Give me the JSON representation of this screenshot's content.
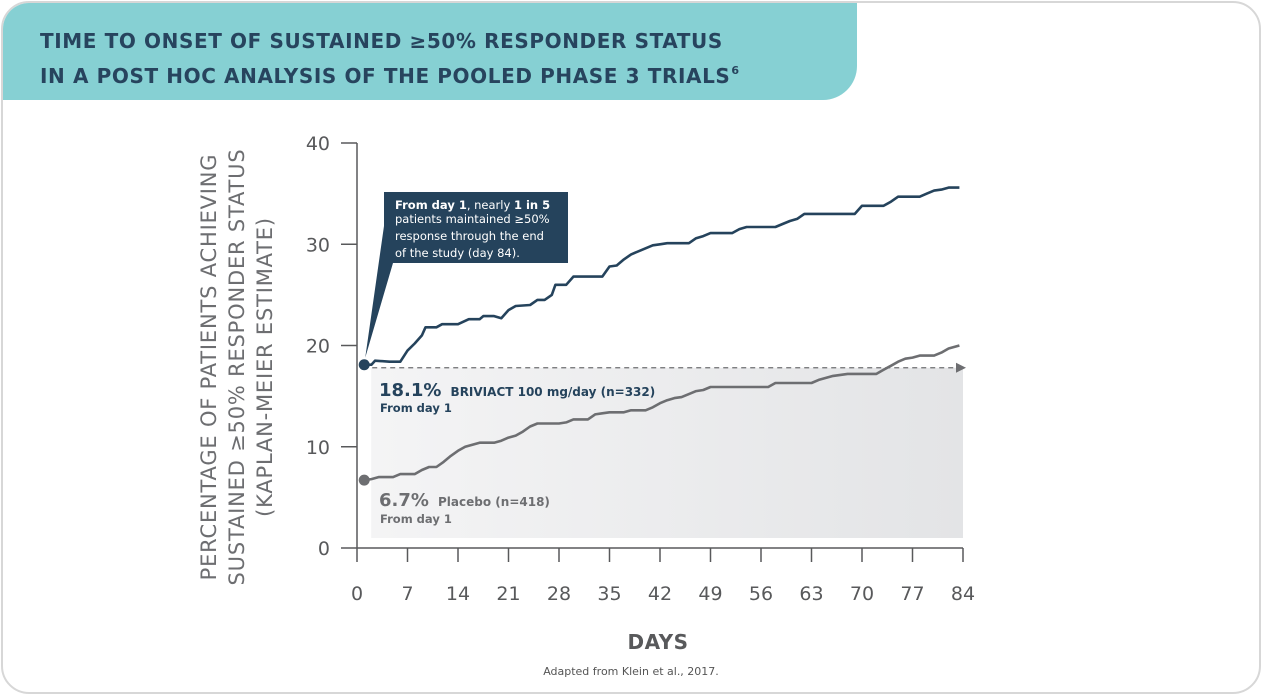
{
  "header": {
    "title_line1": "TIME TO ONSET OF SUSTAINED ≥50% RESPONDER STATUS",
    "title_line2": "IN A POST HOC ANALYSIS OF THE POOLED PHASE 3 TRIALS",
    "title_superscript": "6"
  },
  "chart_data": {
    "type": "line",
    "xlabel": "DAYS",
    "ylabel_lines": [
      "PERCENTAGE OF PATIENTS ACHIEVING",
      "SUSTAINED ≥50% RESPONDER STATUS",
      "(KAPLAN-MEIER ESTIMATE)"
    ],
    "xlim": [
      0,
      84
    ],
    "ylim": [
      0,
      40
    ],
    "x_ticks": [
      0,
      7,
      14,
      21,
      28,
      35,
      42,
      49,
      56,
      63,
      70,
      77,
      84
    ],
    "y_ticks": [
      0,
      10,
      20,
      30,
      40
    ],
    "grid": false,
    "series": [
      {
        "name": "BRIVIACT 100 mg/day (n=332)",
        "color": "#25435c",
        "points": [
          [
            1,
            18.1
          ],
          [
            2,
            18.1
          ],
          [
            2.5,
            18.5
          ],
          [
            4.5,
            18.4
          ],
          [
            6,
            18.4
          ],
          [
            7,
            19.5
          ],
          [
            8,
            20.2
          ],
          [
            9,
            21.0
          ],
          [
            9.5,
            21.8
          ],
          [
            11,
            21.8
          ],
          [
            11.8,
            22.1
          ],
          [
            14,
            22.1
          ],
          [
            15.5,
            22.6
          ],
          [
            17,
            22.6
          ],
          [
            17.5,
            22.9
          ],
          [
            19,
            22.9
          ],
          [
            20,
            22.7
          ],
          [
            21,
            23.5
          ],
          [
            22,
            23.9
          ],
          [
            24,
            24.0
          ],
          [
            25,
            24.5
          ],
          [
            26,
            24.5
          ],
          [
            27,
            25.0
          ],
          [
            27.5,
            26.0
          ],
          [
            29,
            26.0
          ],
          [
            30,
            26.8
          ],
          [
            34,
            26.8
          ],
          [
            35,
            27.8
          ],
          [
            36,
            27.9
          ],
          [
            37,
            28.5
          ],
          [
            38,
            29.0
          ],
          [
            40,
            29.6
          ],
          [
            41,
            29.9
          ],
          [
            42,
            30.0
          ],
          [
            43,
            30.1
          ],
          [
            46,
            30.1
          ],
          [
            47,
            30.6
          ],
          [
            48,
            30.8
          ],
          [
            49,
            31.1
          ],
          [
            52,
            31.1
          ],
          [
            53,
            31.5
          ],
          [
            54,
            31.7
          ],
          [
            58,
            31.7
          ],
          [
            59,
            32.0
          ],
          [
            60,
            32.3
          ],
          [
            61,
            32.5
          ],
          [
            62,
            33.0
          ],
          [
            69,
            33.0
          ],
          [
            70,
            33.8
          ],
          [
            73,
            33.8
          ],
          [
            74,
            34.2
          ],
          [
            75,
            34.7
          ],
          [
            78,
            34.7
          ],
          [
            79,
            35.0
          ],
          [
            80,
            35.3
          ],
          [
            81,
            35.4
          ],
          [
            82,
            35.6
          ],
          [
            83.5,
            35.6
          ]
        ]
      },
      {
        "name": "Placebo (n=418)",
        "color": "#6d6e71",
        "points": [
          [
            1,
            6.7
          ],
          [
            2,
            6.8
          ],
          [
            3,
            7.0
          ],
          [
            5,
            7.0
          ],
          [
            6,
            7.3
          ],
          [
            8,
            7.3
          ],
          [
            9,
            7.7
          ],
          [
            10,
            8.0
          ],
          [
            11,
            8.0
          ],
          [
            12,
            8.5
          ],
          [
            13,
            9.1
          ],
          [
            14,
            9.6
          ],
          [
            15,
            10.0
          ],
          [
            16,
            10.2
          ],
          [
            17,
            10.4
          ],
          [
            19,
            10.4
          ],
          [
            20,
            10.6
          ],
          [
            21,
            10.9
          ],
          [
            22,
            11.1
          ],
          [
            23,
            11.5
          ],
          [
            24,
            12.0
          ],
          [
            25,
            12.3
          ],
          [
            28,
            12.3
          ],
          [
            29,
            12.4
          ],
          [
            30,
            12.7
          ],
          [
            32,
            12.7
          ],
          [
            33,
            13.2
          ],
          [
            34,
            13.3
          ],
          [
            35,
            13.4
          ],
          [
            37,
            13.4
          ],
          [
            38,
            13.6
          ],
          [
            40,
            13.6
          ],
          [
            41,
            13.9
          ],
          [
            42,
            14.3
          ],
          [
            43,
            14.6
          ],
          [
            44,
            14.8
          ],
          [
            45,
            14.9
          ],
          [
            46,
            15.2
          ],
          [
            47,
            15.5
          ],
          [
            48,
            15.6
          ],
          [
            49,
            15.9
          ],
          [
            57,
            15.9
          ],
          [
            58,
            16.3
          ],
          [
            63,
            16.3
          ],
          [
            64,
            16.6
          ],
          [
            65,
            16.8
          ],
          [
            66,
            17.0
          ],
          [
            67,
            17.1
          ],
          [
            68,
            17.2
          ],
          [
            72,
            17.2
          ],
          [
            73,
            17.6
          ],
          [
            74,
            18.0
          ],
          [
            75,
            18.4
          ],
          [
            76,
            18.7
          ],
          [
            77,
            18.8
          ],
          [
            78,
            19.0
          ],
          [
            80,
            19.0
          ],
          [
            81,
            19.3
          ],
          [
            82,
            19.7
          ],
          [
            83.5,
            20.0
          ]
        ]
      }
    ],
    "reference_line": {
      "y": 17.8,
      "x_from": 1,
      "x_to": 84,
      "style": "dashed-arrow"
    },
    "shaded_area": {
      "x_from": 1,
      "x_to": 84,
      "y_from": 0,
      "y_to": 17.8
    },
    "callout": {
      "bold1": "From day 1",
      "text1": ", nearly ",
      "bold2": "1 in 5",
      "line2": "patients maintained ≥50%",
      "line3": "response through the end",
      "line4": "of the study (day 84)."
    },
    "annotations": {
      "briviact_pct": "18.1%",
      "briviact_label": "BRIVIACT 100 mg/day (n=332)",
      "briviact_sub": "From day 1",
      "placebo_pct": "6.7%",
      "placebo_label": "Placebo (n=418)",
      "placebo_sub": "From day 1"
    }
  },
  "footer": {
    "source": "Adapted from Klein et al., 2017."
  }
}
